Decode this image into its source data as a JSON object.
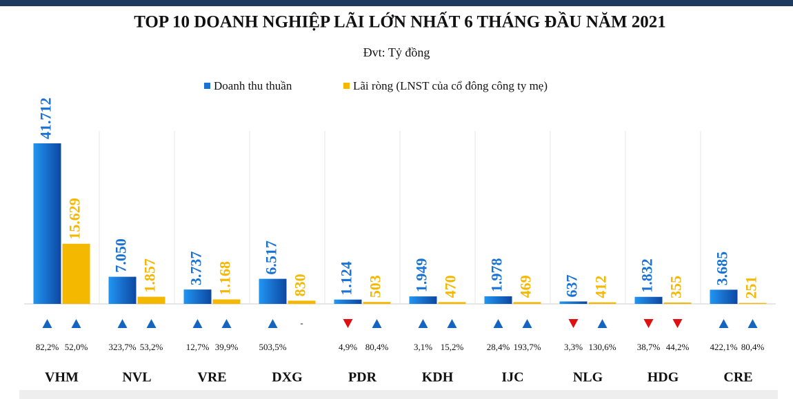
{
  "chart_data": {
    "type": "bar",
    "title": "TOP 10 DOANH NGHIỆP LÃI LỚN NHẤT 6 THÁNG ĐẦU NĂM 2021",
    "subtitle": "Đvt: Tỷ đồng",
    "categories": [
      "VHM",
      "NVL",
      "VRE",
      "DXG",
      "PDR",
      "KDH",
      "IJC",
      "NLG",
      "HDG",
      "CRE"
    ],
    "series": [
      {
        "name": "Doanh thu thuần",
        "color": "#1a73d4",
        "values": [
          41712,
          7050,
          3737,
          6517,
          1124,
          1949,
          1978,
          637,
          1832,
          3685
        ],
        "value_labels": [
          "41.712",
          "7.050",
          "3.737",
          "6.517",
          "1.124",
          "1.949",
          "1.978",
          "637",
          "1.832",
          "3.685"
        ],
        "change_labels": [
          "82,2%",
          "323,7%",
          "12,7%",
          "503,5%",
          "4,9%",
          "3,1%",
          "28,4%",
          "3,3%",
          "38,7%",
          "422,1%"
        ],
        "change_direction": [
          "up",
          "up",
          "up",
          "up",
          "down",
          "up",
          "up",
          "down",
          "down",
          "up"
        ]
      },
      {
        "name": "Lãi ròng (LNST của cổ đông công ty mẹ)",
        "color": "#f5b800",
        "values": [
          15629,
          1857,
          1168,
          830,
          503,
          470,
          469,
          412,
          355,
          251
        ],
        "value_labels": [
          "15.629",
          "1.857",
          "1.168",
          "830",
          "503",
          "470",
          "469",
          "412",
          "355",
          "251"
        ],
        "change_labels": [
          "52,0%",
          "53,2%",
          "39,9%",
          "-",
          "80,4%",
          "15,2%",
          "193,7%",
          "130,6%",
          "44,2%",
          "80,4%"
        ],
        "change_direction": [
          "up",
          "up",
          "up",
          null,
          "up",
          "up",
          "up",
          "up",
          "down",
          "up"
        ]
      }
    ],
    "up_color": "#1565c0",
    "down_color": "#e01010"
  }
}
